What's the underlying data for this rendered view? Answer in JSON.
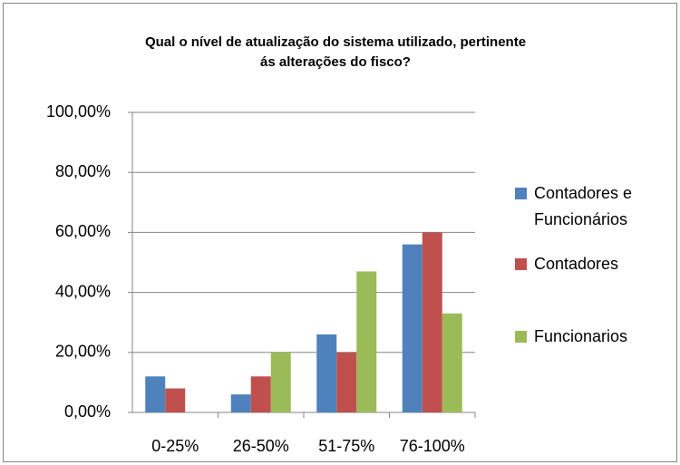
{
  "chart_data": {
    "type": "bar",
    "title": "Qual o nível de atualização do sistema utilizado, pertinente ás alterações do fisco?",
    "categories": [
      "0-25%",
      "26-50%",
      "51-75%",
      "76-100%"
    ],
    "series": [
      {
        "name": "Contadores e Funcionários",
        "color": "#4f81bd",
        "values": [
          12,
          6,
          26,
          56
        ]
      },
      {
        "name": "Contadores",
        "color": "#c0504d",
        "values": [
          8,
          12,
          20,
          60
        ]
      },
      {
        "name": "Funcionarios",
        "color": "#9bbb59",
        "values": [
          0,
          20,
          47,
          33
        ]
      }
    ],
    "ylim": [
      0,
      100
    ],
    "yticks": [
      {
        "value": 0,
        "label": "0,00%"
      },
      {
        "value": 20,
        "label": "20,00%"
      },
      {
        "value": 40,
        "label": "40,00%"
      },
      {
        "value": 60,
        "label": "60,00%"
      },
      {
        "value": 80,
        "label": "80,00%"
      },
      {
        "value": 100,
        "label": "100,00%"
      }
    ],
    "grid": true,
    "legend": "right"
  }
}
